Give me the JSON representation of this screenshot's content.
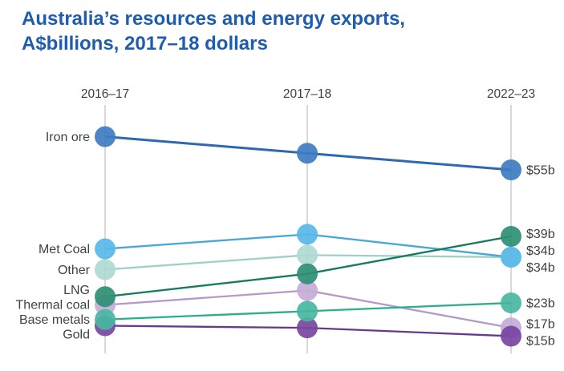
{
  "title": {
    "line1": "Australia’s resources and energy exports,",
    "line2": "A$billions, 2017–18 dollars"
  },
  "colors": {
    "title": "#1e5cad",
    "axis": "#d8d8d8",
    "header_text": "#3d3f43",
    "label_text": "#3f4245"
  },
  "chart_data": {
    "type": "line",
    "variant": "slope",
    "title": "Australia’s resources and energy exports, A$billions, 2017–18 dollars",
    "x_categories": [
      "2016–17",
      "2017–18",
      "2022–23"
    ],
    "y_axis_visible": false,
    "grid": "vertical-column-lines",
    "legend": "category-labels-left, value-labels-right",
    "ylim": [
      12,
      66
    ],
    "series": [
      {
        "name": "Iron ore",
        "values": [
          63,
          59,
          55
        ],
        "end_label": "$55b",
        "dot_color": "#3e7cc2",
        "line_color": "#2e68b0"
      },
      {
        "name": "Met Coal",
        "values": [
          36,
          39.5,
          34
        ],
        "end_label": "$34b",
        "dot_color": "#58b8e8",
        "line_color": "#45a8d8"
      },
      {
        "name": "Other",
        "values": [
          31,
          34.5,
          34
        ],
        "end_label": "$34b",
        "dot_color": "#aedad3",
        "line_color": "#9cd0ca"
      },
      {
        "name": "LNG",
        "values": [
          24.5,
          30,
          39
        ],
        "end_label": "$39b",
        "dot_color": "#2e8f74",
        "line_color": "#177a5e"
      },
      {
        "name": "Thermal coal",
        "values": [
          22.5,
          26,
          17
        ],
        "end_label": "$17b",
        "dot_color": "#c6acd8",
        "line_color": "#b499c9"
      },
      {
        "name": "Base metals",
        "values": [
          19,
          21,
          23
        ],
        "end_label": "$23b",
        "dot_color": "#48b7a1",
        "line_color": "#2bad8f"
      },
      {
        "name": "Gold",
        "values": [
          17.5,
          17,
          15
        ],
        "end_label": "$15b",
        "dot_color": "#7845a0",
        "line_color": "#66388f"
      }
    ]
  }
}
